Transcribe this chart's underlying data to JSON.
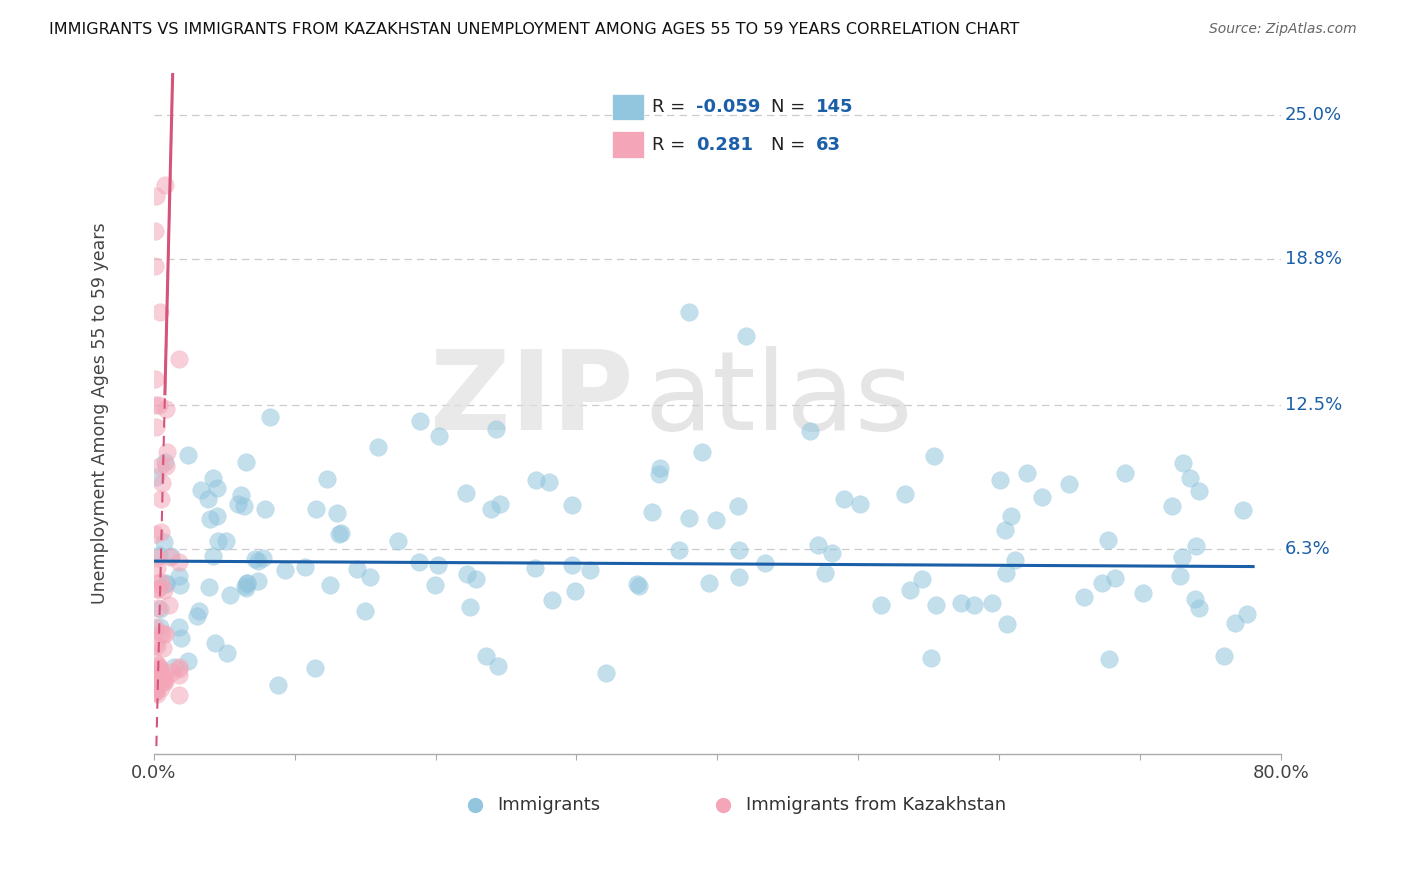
{
  "title": "IMMIGRANTS VS IMMIGRANTS FROM KAZAKHSTAN UNEMPLOYMENT AMONG AGES 55 TO 59 YEARS CORRELATION CHART",
  "source": "Source: ZipAtlas.com",
  "ylabel": "Unemployment Among Ages 55 to 59 years",
  "xlim": [
    0.0,
    0.8
  ],
  "ylim": [
    -0.025,
    0.268
  ],
  "xticks": [
    0.0,
    0.1,
    0.2,
    0.3,
    0.4,
    0.5,
    0.6,
    0.7,
    0.8
  ],
  "ytick_positions": [
    0.063,
    0.125,
    0.188,
    0.25
  ],
  "ytick_labels": [
    "6.3%",
    "12.5%",
    "18.8%",
    "25.0%"
  ],
  "blue_R": -0.059,
  "blue_N": 145,
  "pink_R": 0.281,
  "pink_N": 63,
  "blue_color": "#92c5de",
  "pink_color": "#f4a6b8",
  "blue_line_color": "#1a5fa8",
  "pink_line_color": "#d4547a",
  "watermark_zip": "ZIP",
  "watermark_atlas": "atlas",
  "legend_label_blue": "Immigrants",
  "legend_label_pink": "Immigrants from Kazakhstan",
  "background_color": "#ffffff",
  "grid_color": "#cccccc"
}
